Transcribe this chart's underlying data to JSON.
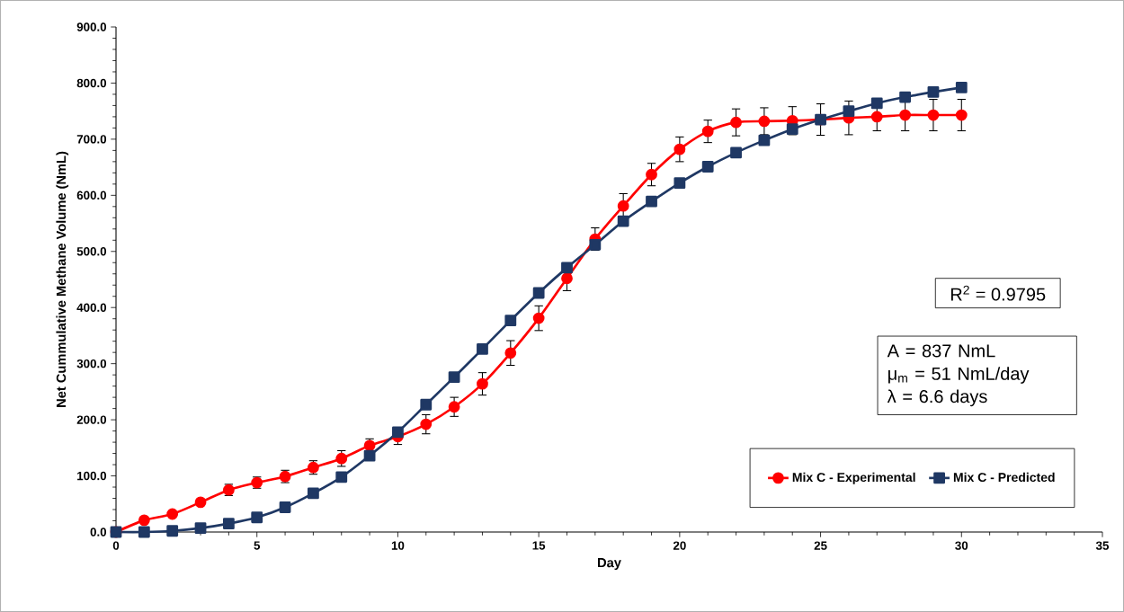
{
  "chart_data": {
    "type": "line",
    "xlabel": "Day",
    "ylabel": "Net Cummulative Methane Volume (NmL)",
    "xlim": [
      0,
      35
    ],
    "xticks": [
      0,
      5,
      10,
      15,
      20,
      25,
      30,
      35
    ],
    "ylim": [
      0,
      900
    ],
    "yticks": [
      {
        "value": 0,
        "label": "0.0"
      },
      {
        "value": 100,
        "label": "100.0"
      },
      {
        "value": 200,
        "label": "200.0"
      },
      {
        "value": 300,
        "label": "300.0"
      },
      {
        "value": 400,
        "label": "400.0"
      },
      {
        "value": 500,
        "label": "500.0"
      },
      {
        "value": 600,
        "label": "600.0"
      },
      {
        "value": 700,
        "label": "700.0"
      },
      {
        "value": 800,
        "label": "800.0"
      },
      {
        "value": 900,
        "label": "900.0"
      }
    ],
    "x": [
      0,
      1,
      2,
      3,
      4,
      5,
      6,
      7,
      8,
      9,
      10,
      11,
      12,
      13,
      14,
      15,
      16,
      17,
      18,
      19,
      20,
      21,
      22,
      23,
      24,
      25,
      26,
      27,
      28,
      29,
      30
    ],
    "series": [
      {
        "name": "Mix C - Experimental",
        "color": "#ff0000",
        "marker": "circle",
        "values": [
          0,
          21,
          32,
          53,
          75,
          88,
          99,
          115,
          131,
          154,
          170,
          192,
          223,
          264,
          319,
          381,
          452,
          522,
          581,
          637,
          682,
          714,
          730,
          732,
          733,
          735,
          738,
          740,
          743,
          743,
          743
        ],
        "errors": [
          null,
          null,
          null,
          null,
          10,
          10,
          11,
          12,
          14,
          12,
          14,
          17,
          17,
          20,
          22,
          22,
          22,
          20,
          22,
          20,
          22,
          20,
          24,
          24,
          25,
          28,
          30,
          25,
          28,
          28,
          28
        ]
      },
      {
        "name": "Mix C - Predicted",
        "color": "#1f3864",
        "marker": "square",
        "values": [
          0,
          0,
          2,
          7,
          15,
          26,
          44,
          69,
          98,
          136,
          178,
          227,
          276,
          326,
          377,
          426,
          471,
          512,
          554,
          589,
          622,
          651,
          676,
          698,
          718,
          735,
          750,
          764,
          775,
          784,
          792
        ]
      }
    ],
    "annotations": [
      "R$^{2}$ = 0.9795",
      "A = 837 NmL",
      "μ$_{m}$ = 51 NmL/day",
      "λ = 6.6 days"
    ],
    "legend": "bottom right",
    "grid": false
  }
}
